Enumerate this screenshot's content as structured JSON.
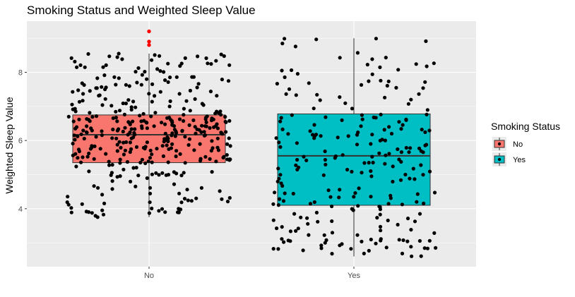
{
  "chart_data": {
    "type": "boxplot",
    "title": "Smoking Status and Weighted Sleep Value",
    "xlabel": "",
    "ylabel": "Weighted Sleep Value",
    "ylim": [
      2.3,
      9.5
    ],
    "y_ticks": [
      4,
      6,
      8
    ],
    "categories": [
      "No",
      "Yes"
    ],
    "legend": {
      "title": "Smoking Status",
      "position": "right",
      "entries": [
        "No",
        "Yes"
      ]
    },
    "colors": {
      "No": "#F8766D",
      "Yes": "#00BFC4",
      "outlier": "#FF0000",
      "point": "#000000",
      "panel": "#EBEBEB",
      "grid": "#FFFFFF"
    },
    "series": [
      {
        "name": "No",
        "box": {
          "whisker_low": 3.75,
          "q1": 5.35,
          "median": 6.17,
          "q3": 6.75,
          "whisker_high": 8.55
        },
        "outliers": [
          9.2,
          8.9,
          8.8
        ],
        "jitter_seed": 11,
        "jitter_count": 380
      },
      {
        "name": "Yes",
        "box": {
          "whisker_low": 2.6,
          "q1": 4.1,
          "median": 5.55,
          "q3": 6.78,
          "whisker_high": 9.0
        },
        "outliers": [],
        "jitter_seed": 23,
        "jitter_count": 240
      }
    ]
  }
}
